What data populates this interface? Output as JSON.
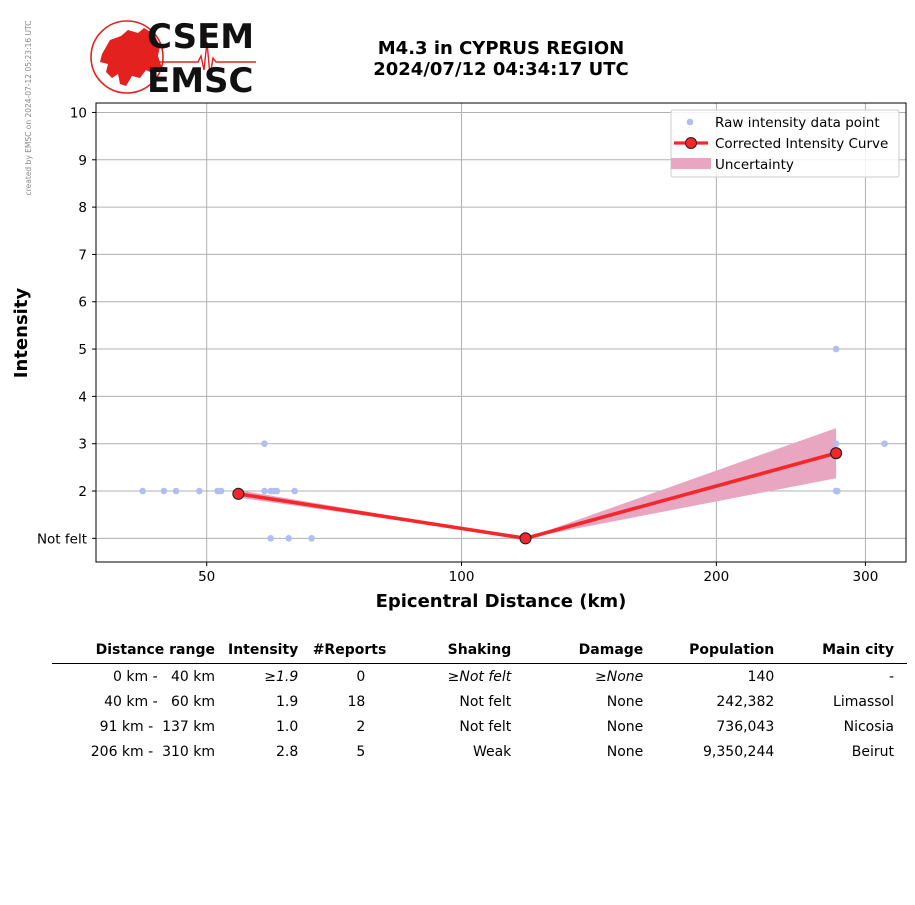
{
  "stamp": "created by EMSC on 2024-07-12 05:23:16 UTC",
  "logo": {
    "line1": "CSEM",
    "line2": "EMSC",
    "brand_color": "#e3221f"
  },
  "title": {
    "line1": "M4.3 in CYPRUS REGION",
    "line2": "2024/07/12 04:34:17 UTC"
  },
  "chart_data": {
    "type": "scatter",
    "xlabel": "Epicentral Distance (km)",
    "ylabel": "Intensity",
    "x_scale": "log",
    "xlim": [
      37,
      335
    ],
    "ylim": [
      0.5,
      10.2
    ],
    "x_ticks": [
      50,
      100,
      200,
      300
    ],
    "x_tick_labels": [
      "50",
      "100",
      "200",
      "300"
    ],
    "y_ticks": [
      1,
      2,
      3,
      4,
      5,
      6,
      7,
      8,
      9,
      10
    ],
    "y_tick_labels": [
      "Not felt",
      "2",
      "3",
      "4",
      "5",
      "6",
      "7",
      "8",
      "9",
      "10"
    ],
    "grid": true,
    "legend_position": "top-right",
    "legend": [
      "Raw intensity data point",
      "Corrected Intensity Curve",
      "Uncertainty"
    ],
    "colors": {
      "raw": "#b0bff0",
      "curve": "#f5272b",
      "uncertainty": "#e8a6c1",
      "marker_edge": "#222222"
    },
    "raw_points": [
      {
        "x": 42,
        "y": 2
      },
      {
        "x": 44.5,
        "y": 2
      },
      {
        "x": 46,
        "y": 2
      },
      {
        "x": 49,
        "y": 2
      },
      {
        "x": 51.5,
        "y": 2
      },
      {
        "x": 52,
        "y": 2
      },
      {
        "x": 58.5,
        "y": 2
      },
      {
        "x": 59.5,
        "y": 2
      },
      {
        "x": 60,
        "y": 2
      },
      {
        "x": 60.5,
        "y": 2
      },
      {
        "x": 63.5,
        "y": 2
      },
      {
        "x": 58.5,
        "y": 3
      },
      {
        "x": 59.5,
        "y": 1
      },
      {
        "x": 62.5,
        "y": 1
      },
      {
        "x": 66.5,
        "y": 1
      },
      {
        "x": 277,
        "y": 5
      },
      {
        "x": 277,
        "y": 3
      },
      {
        "x": 277,
        "y": 2
      },
      {
        "x": 278,
        "y": 2
      },
      {
        "x": 316,
        "y": 3
      }
    ],
    "curve": {
      "x": [
        54.5,
        119,
        277
      ],
      "y": [
        1.94,
        1.0,
        2.8
      ]
    },
    "uncertainty": {
      "x": [
        54.5,
        119,
        277
      ],
      "lower": [
        1.86,
        1.0,
        2.27
      ],
      "upper": [
        2.02,
        1.0,
        3.33
      ]
    }
  },
  "table": {
    "headers": [
      "Distance range",
      "Intensity",
      "#Reports",
      "Shaking",
      "Damage",
      "Population",
      "Main city"
    ],
    "rows": [
      {
        "range": "0 km -   40 km",
        "intensity": "≥1.9",
        "reports": "0",
        "shaking": "≥Not felt",
        "damage": "≥None",
        "population": "140",
        "city": "-"
      },
      {
        "range": "40 km -   60 km",
        "intensity": "1.9",
        "reports": "18",
        "shaking": "Not felt",
        "damage": "None",
        "population": "242,382",
        "city": "Limassol"
      },
      {
        "range": "91 km -  137 km",
        "intensity": "1.0",
        "reports": "2",
        "shaking": "Not felt",
        "damage": "None",
        "population": "736,043",
        "city": "Nicosia"
      },
      {
        "range": "206 km -  310 km",
        "intensity": "2.8",
        "reports": "5",
        "shaking": "Weak",
        "damage": "None",
        "population": "9,350,244",
        "city": "Beirut"
      }
    ]
  }
}
